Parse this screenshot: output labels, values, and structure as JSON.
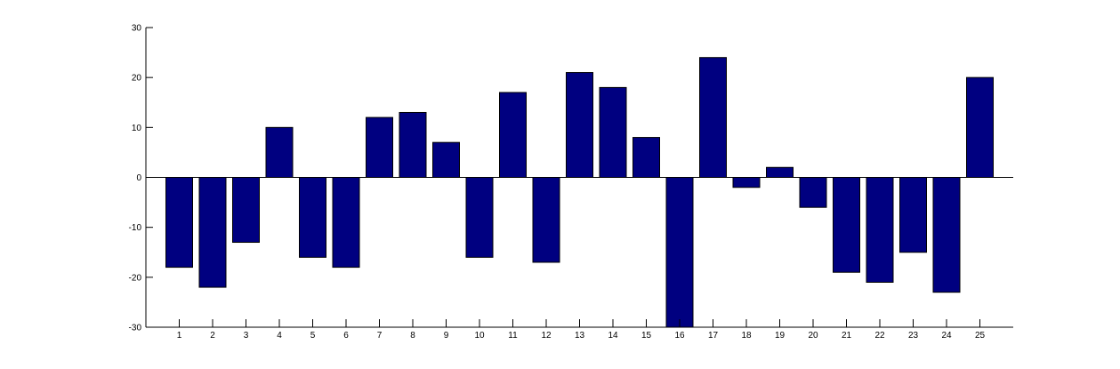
{
  "chart_data": {
    "type": "bar",
    "categories": [
      "1",
      "2",
      "3",
      "4",
      "5",
      "6",
      "7",
      "8",
      "9",
      "10",
      "11",
      "12",
      "13",
      "14",
      "15",
      "16",
      "17",
      "18",
      "19",
      "20",
      "21",
      "22",
      "23",
      "24",
      "25"
    ],
    "values": [
      -18,
      -22,
      -13,
      10,
      -16,
      -18,
      12,
      13,
      7,
      -16,
      17,
      -17,
      21,
      18,
      8,
      -30,
      24,
      -2,
      2,
      -6,
      -19,
      -21,
      -15,
      -23,
      20
    ],
    "title": "",
    "xlabel": "",
    "ylabel": "",
    "ylim": [
      -30,
      30
    ],
    "yticks": [
      "30",
      "20",
      "10",
      "0",
      "-10",
      "-20",
      "-30"
    ],
    "ytick_values": [
      30,
      20,
      10,
      0,
      -10,
      -20,
      -30
    ],
    "grid": false,
    "colors": {
      "bar_fill": "#000080",
      "bar_stroke": "#000000",
      "axis": "#000000",
      "background": "#ffffff"
    }
  }
}
